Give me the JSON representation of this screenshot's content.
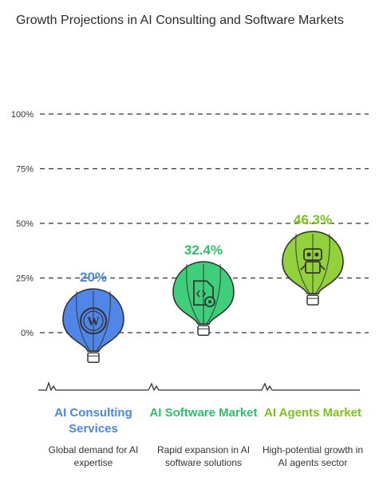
{
  "chart_data": {
    "type": "bar",
    "title": "Growth Projections in AI Consulting and Software Markets",
    "y_ticks": [
      "100%",
      "75%",
      "50%",
      "25%",
      "0%"
    ],
    "ylim": [
      0,
      100
    ],
    "grid": true,
    "categories": [
      "AI Consulting Services",
      "AI Software Market",
      "AI Agents Market"
    ],
    "values": [
      20,
      32.4,
      46.3
    ],
    "value_labels": [
      "20%",
      "32.4%",
      "46.3%"
    ],
    "descriptions": [
      "Global demand for AI expertise",
      "Rapid expansion in AI software solutions",
      "High-potential growth in AI agents sector"
    ],
    "colors": [
      "#4f86e8",
      "#3fcf7a",
      "#92d13c"
    ],
    "label_colors": [
      "#4a86e8",
      "#2fbe6a",
      "#7cc21e"
    ],
    "icons": [
      "wordpress-icon",
      "code-file-gear-icon",
      "robot-icon"
    ]
  }
}
